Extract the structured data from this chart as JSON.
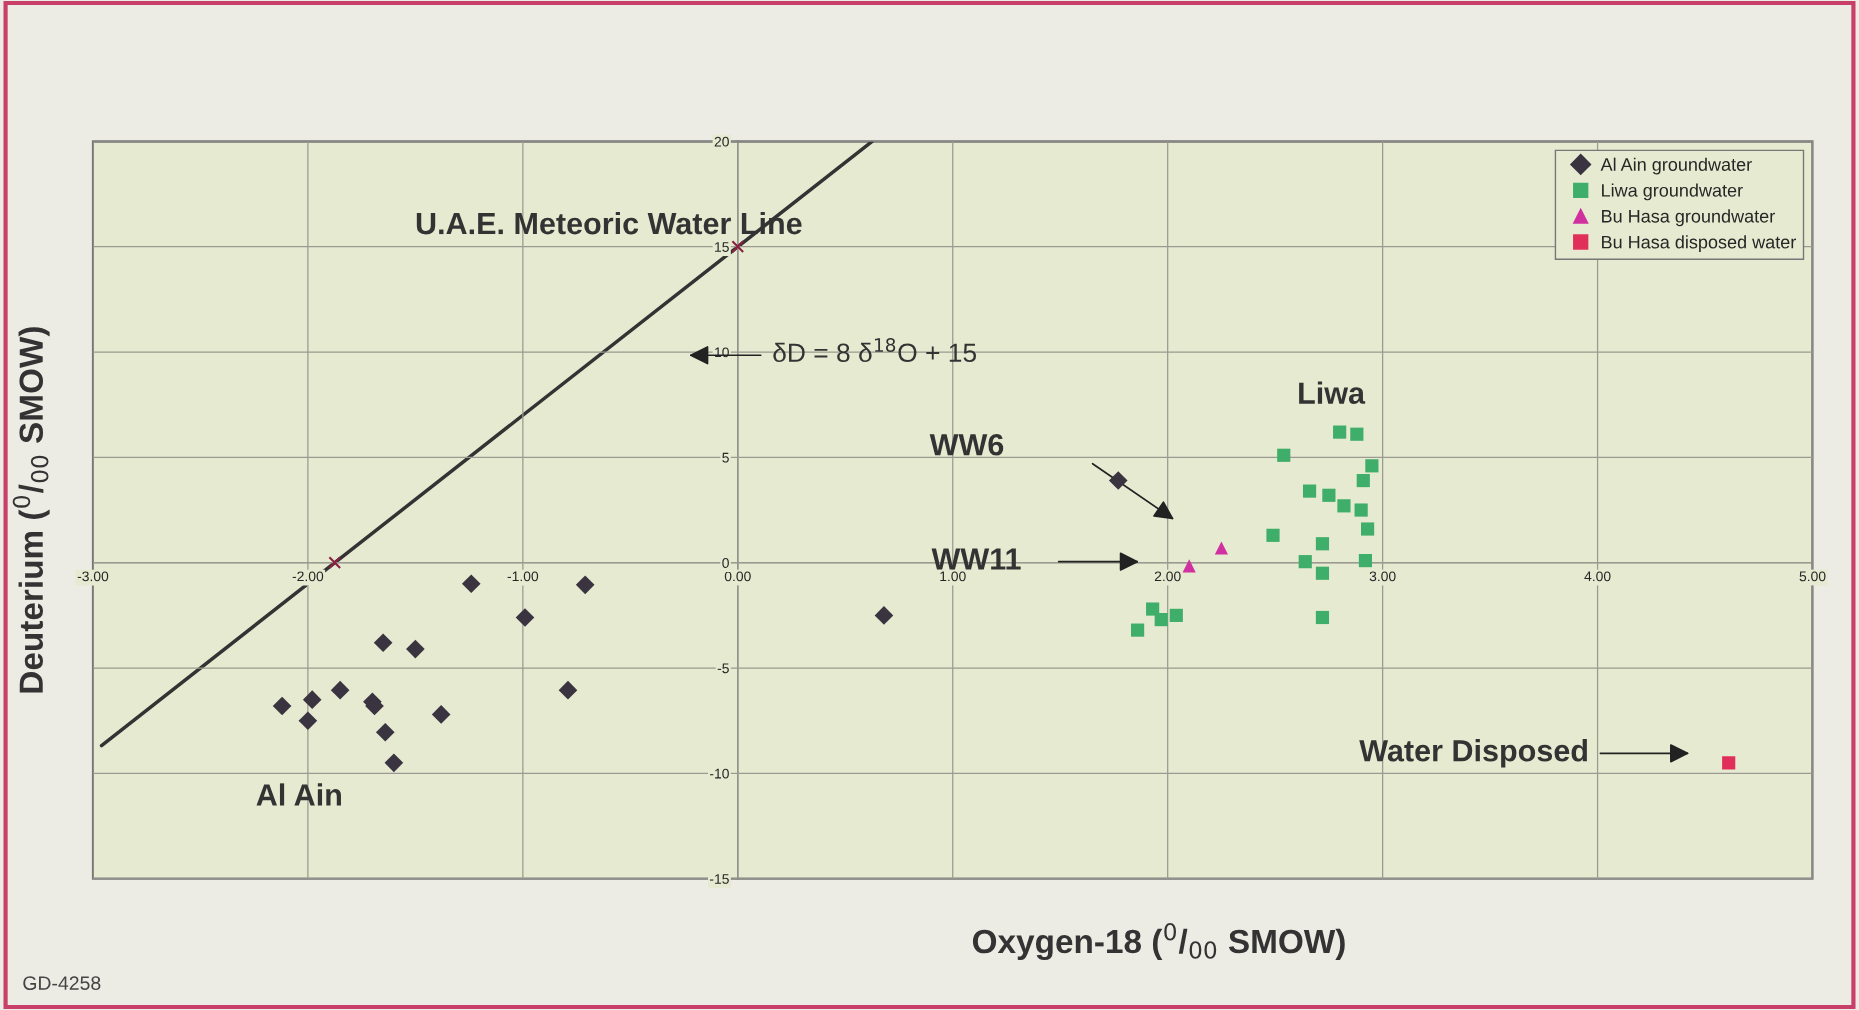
{
  "chart_data": {
    "type": "scatter",
    "xlabel": "Oxygen-18 ($^{0}$/$_{00}$ SMOW)",
    "ylabel": "Deuterium ($^{0}$/$_{00}$ SMOW)",
    "xlim": [
      -3,
      5
    ],
    "ylim": [
      -15,
      20
    ],
    "xticks": [
      {
        "value": -3,
        "label": "-3.00"
      },
      {
        "value": -2,
        "label": "-2.00"
      },
      {
        "value": -1,
        "label": "-1.00"
      },
      {
        "value": 0,
        "label": "0.00"
      },
      {
        "value": 1,
        "label": "1.00"
      },
      {
        "value": 2,
        "label": "2.00"
      },
      {
        "value": 3,
        "label": "3.00"
      },
      {
        "value": 4,
        "label": "4.00"
      },
      {
        "value": 5,
        "label": "5.00"
      }
    ],
    "yticks": [
      -15,
      -10,
      -5,
      0,
      5,
      10,
      15,
      20
    ],
    "grid": true,
    "legend": "top right",
    "series": [
      {
        "type": "line",
        "color": "#333333",
        "marker": "none",
        "x": [
          -2.96,
          0.625
        ],
        "values": [
          -8.68,
          20
        ]
      },
      {
        "color": "#8b2040",
        "marker": "cross",
        "x": [
          -1.875,
          0
        ],
        "values": [
          0,
          15
        ]
      },
      {
        "name": "Al Ain groundwater",
        "color": "#3a3340",
        "marker": "diamond",
        "x": [
          -2.12,
          -2.0,
          -1.98,
          -1.85,
          -1.7,
          -1.69,
          -1.65,
          -1.64,
          -1.6,
          -1.5,
          -1.38,
          -1.24,
          -0.99,
          -0.79,
          -0.71,
          0.68,
          1.77
        ],
        "values": [
          -6.8,
          -7.5,
          -6.5,
          -6.05,
          -6.6,
          -6.8,
          -3.8,
          -8.05,
          -9.5,
          -4.1,
          -7.2,
          -1.0,
          -2.6,
          -6.05,
          -1.05,
          -2.5,
          3.9
        ]
      },
      {
        "name": "Liwa groundwater",
        "color": "#3fae6a",
        "marker": "square",
        "x": [
          1.86,
          1.93,
          1.97,
          2.04,
          2.49,
          2.54,
          2.64,
          2.66,
          2.72,
          2.72,
          2.72,
          2.75,
          2.8,
          2.82,
          2.88,
          2.9,
          2.91,
          2.92,
          2.93,
          2.95
        ],
        "values": [
          -3.2,
          -2.2,
          -2.7,
          -2.5,
          1.3,
          5.1,
          0.05,
          3.4,
          0.9,
          -0.5,
          -2.6,
          3.2,
          6.2,
          2.7,
          6.1,
          2.5,
          3.9,
          0.1,
          1.6,
          4.6
        ]
      },
      {
        "name": "Bu Hasa groundwater",
        "color": "#d030a0",
        "marker": "triangle",
        "x": [
          2.1,
          2.25
        ],
        "values": [
          -0.15,
          0.7
        ]
      },
      {
        "name": "Bu Hasa disposed water",
        "color": "#e0305a",
        "marker": "square",
        "x": [
          4.61
        ],
        "values": [
          -9.5
        ]
      }
    ],
    "annotations": [
      "U.A.E. Meteoric Water Line",
      "δD = 8 δ$^{18}$O + 15",
      "Al Ain",
      "Liwa",
      "WW6",
      "WW11",
      "Water Disposed",
      "GD-4258"
    ]
  }
}
